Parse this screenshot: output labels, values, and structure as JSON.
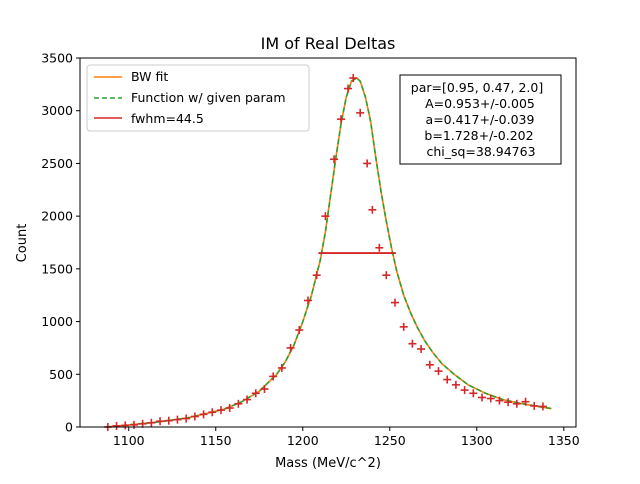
{
  "chart_data": {
    "type": "scatter",
    "title": "IM of Real Deltas",
    "xlabel": "Mass (MeV/c^2)",
    "ylabel": "Count",
    "xlim": [
      1072,
      1357
    ],
    "ylim": [
      0,
      3500
    ],
    "x_ticks": [
      1100,
      1150,
      1200,
      1250,
      1300,
      1350
    ],
    "y_ticks": [
      0,
      500,
      1000,
      1500,
      2000,
      2500,
      3000,
      3500
    ],
    "grid": false,
    "legend_position": "top-left",
    "series": [
      {
        "name": "BW fit",
        "kind": "line",
        "color": "#ff7f0e",
        "style": "solid"
      },
      {
        "name": "Function w/ given param",
        "kind": "line",
        "color": "#2ca02c",
        "style": "dashed"
      },
      {
        "name": "fwhm=44.5",
        "kind": "line",
        "color": "#d62728",
        "style": "solid"
      }
    ],
    "fit_curve": {
      "x": [
        1087,
        1095,
        1105,
        1115,
        1125,
        1135,
        1145,
        1155,
        1165,
        1175,
        1185,
        1190,
        1195,
        1200,
        1205,
        1210,
        1213,
        1216,
        1219,
        1222,
        1225,
        1228,
        1231,
        1233,
        1236,
        1239,
        1242,
        1245,
        1248,
        1251,
        1254,
        1258,
        1262,
        1266,
        1270,
        1275,
        1280,
        1287,
        1295,
        1305,
        1315,
        1325,
        1335,
        1343
      ],
      "y": [
        0,
        12,
        28,
        45,
        65,
        90,
        130,
        170,
        240,
        340,
        500,
        620,
        780,
        1000,
        1250,
        1580,
        1850,
        2200,
        2550,
        2880,
        3130,
        3280,
        3310,
        3280,
        3130,
        2900,
        2550,
        2230,
        1950,
        1700,
        1480,
        1250,
        1080,
        940,
        820,
        700,
        600,
        500,
        400,
        320,
        260,
        225,
        195,
        175
      ]
    },
    "fwhm_line": {
      "x": [
        1209,
        1253.5
      ],
      "y": 1650
    },
    "data_points": {
      "x": [
        1088,
        1093,
        1098,
        1103,
        1108,
        1113,
        1118,
        1123,
        1128,
        1133,
        1138,
        1143,
        1148,
        1153,
        1158,
        1163,
        1168,
        1173,
        1178,
        1183,
        1188,
        1193,
        1198,
        1203,
        1208,
        1213,
        1218,
        1222,
        1226,
        1229,
        1233,
        1237,
        1240,
        1244,
        1248,
        1253,
        1258,
        1263,
        1268,
        1273,
        1278,
        1283,
        1288,
        1293,
        1298,
        1303,
        1308,
        1313,
        1318,
        1323,
        1328,
        1333,
        1338
      ],
      "y": [
        0,
        10,
        15,
        20,
        30,
        40,
        55,
        60,
        70,
        80,
        100,
        120,
        140,
        160,
        180,
        220,
        260,
        320,
        360,
        480,
        560,
        750,
        920,
        1200,
        1440,
        2000,
        2540,
        2920,
        3210,
        3310,
        2980,
        2500,
        2060,
        1700,
        1440,
        1180,
        950,
        790,
        740,
        590,
        530,
        450,
        400,
        350,
        320,
        280,
        270,
        250,
        235,
        220,
        240,
        200,
        195
      ]
    },
    "annotation": [
      "par=[0.95, 0.47, 2.0]",
      "A=0.953+/-0.005",
      "a=0.417+/-0.039",
      "b=1.728+/-0.202",
      "chi_sq=38.94763"
    ]
  }
}
